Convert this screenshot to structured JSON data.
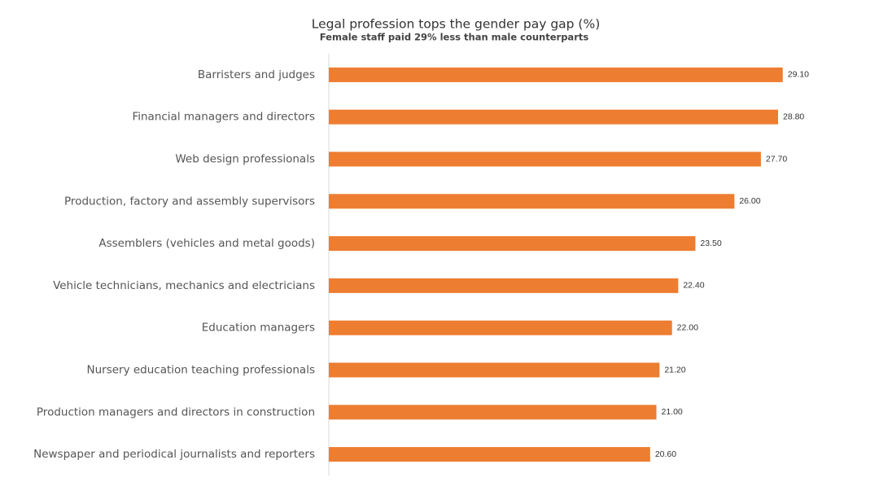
{
  "chart_data": {
    "type": "bar",
    "orientation": "horizontal",
    "title": "Legal profession tops the gender pay gap (%)",
    "subtitle": "Female staff paid 29% less than male counterparts",
    "categories": [
      "Barristers and judges",
      "Financial managers and directors",
      "Web design professionals",
      "Production, factory and assembly supervisors",
      "Assemblers (vehicles and metal goods)",
      "Vehicle technicians, mechanics and electricians",
      "Education managers",
      "Nursery education teaching professionals",
      "Production managers and directors in construction",
      "Newspaper and periodical journalists and reporters"
    ],
    "values": [
      29.1,
      28.8,
      27.7,
      26.0,
      23.5,
      22.4,
      22.0,
      21.2,
      21.0,
      20.6
    ],
    "value_labels": [
      "29.10",
      "28.80",
      "27.70",
      "26.00",
      "23.50",
      "22.40",
      "22.00",
      "21.20",
      "21.00",
      "20.60"
    ],
    "color": "#ed7d31",
    "xlim": [
      0,
      30
    ]
  }
}
